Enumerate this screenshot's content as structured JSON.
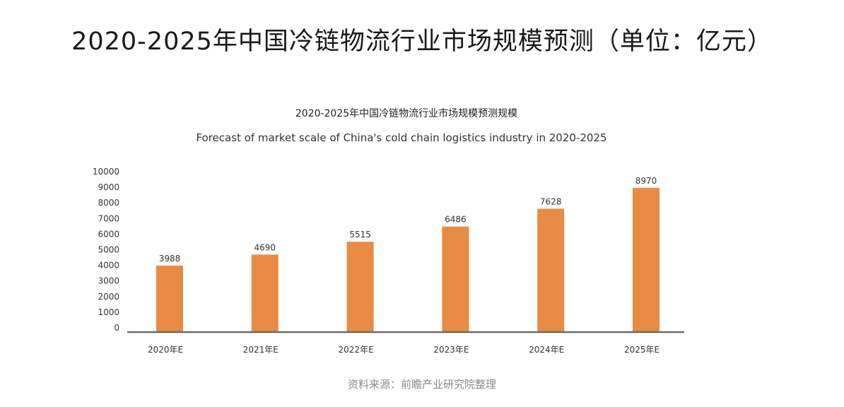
{
  "page": {
    "title": "2020-2025年中国冷链物流行业市场规模预测（单位：亿元）",
    "source": "资料来源：前瞻产业研究院整理"
  },
  "colors": {
    "bar": "#E88B45",
    "axis": "#6b6b6b",
    "text": "#333333"
  },
  "chart_data": {
    "type": "bar",
    "title": "2020-2025年中国冷链物流行业市场规模预测规模",
    "subtitle": "Forecast of market scale of China's cold chain logistics industry in 2020-2025",
    "categories": [
      "2020年E",
      "2021年E",
      "2022年E",
      "2023年E",
      "2024年E",
      "2025年E"
    ],
    "values": [
      3988,
      4690,
      5515,
      6486,
      7628,
      8970
    ],
    "yticks": [
      0,
      1000,
      2000,
      3000,
      4000,
      5000,
      6000,
      7000,
      8000,
      9000,
      10000
    ],
    "ylim": [
      0,
      10000
    ],
    "grid": false,
    "legend": "none"
  }
}
